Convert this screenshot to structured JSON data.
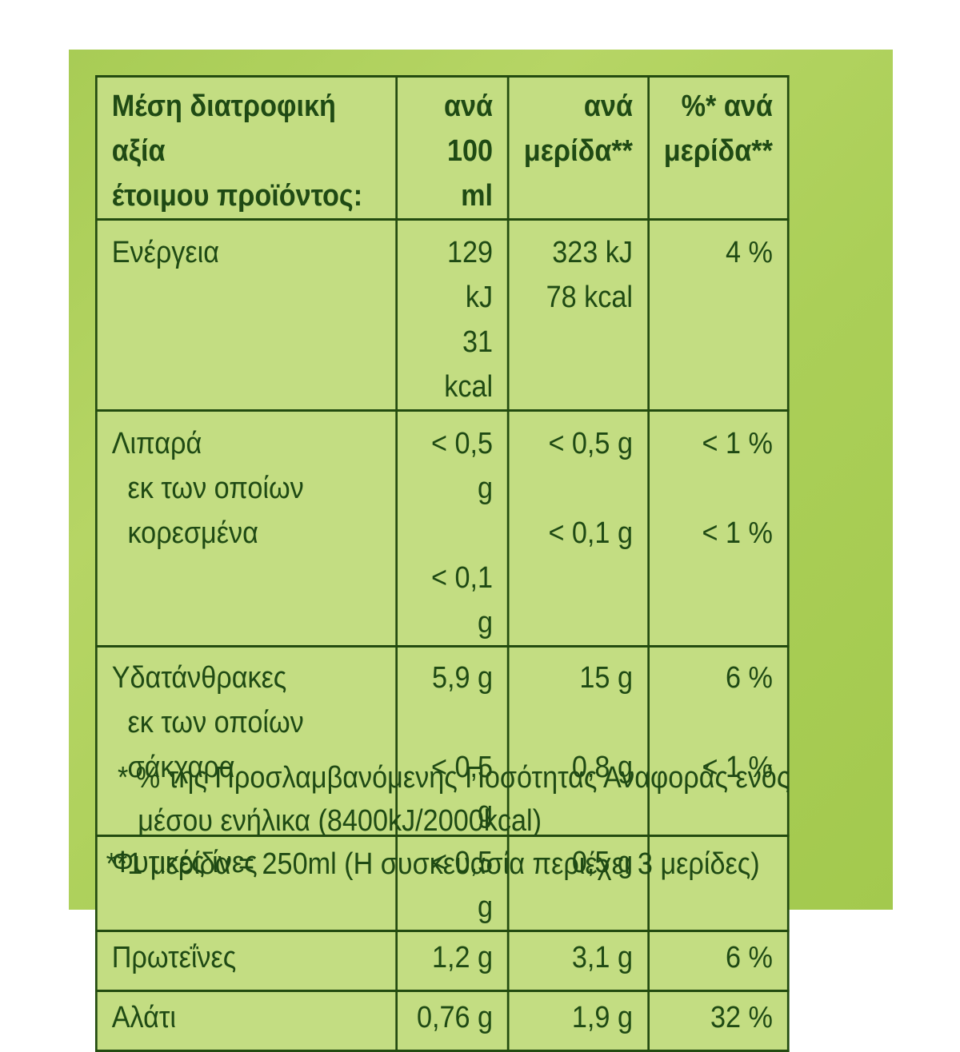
{
  "header": {
    "label_line1": "Μέση διατροφική αξία",
    "label_line2": "έτοιμου προϊόντος:",
    "col1_line1": "ανά",
    "col1_line2": "100 ml",
    "col2_line1": "ανά",
    "col2_line2": "μερίδα**",
    "col3_line1": "%* ανά",
    "col3_line2": "μερίδα**"
  },
  "rows": {
    "energy": {
      "label": "Ενέργεια",
      "per100_kj": "129 kJ",
      "per100_kcal": "31 kcal",
      "serving_kj": "323 kJ",
      "serving_kcal": "78 kcal",
      "ri": "4 %"
    },
    "fat": {
      "label": "Λιπαρά",
      "per100": "< 0,5 g",
      "serving": "< 0,5 g",
      "ri": "< 1 %"
    },
    "saturates": {
      "label_line1": "εκ των οποίων",
      "label_line2": "κορεσμένα",
      "per100": "< 0,1 g",
      "serving": "< 0,1 g",
      "ri": "< 1 %"
    },
    "carbs": {
      "label": "Υδατάνθρακες",
      "per100": "5,9 g",
      "serving": "15 g",
      "ri": "6 %"
    },
    "sugars": {
      "label_line1": "εκ των οποίων",
      "label_line2": "σάκχαρα",
      "per100": "< 0,5 g",
      "serving": "0,8 g",
      "ri": "< 1 %"
    },
    "fiber": {
      "label": "Φυτικές ίνες",
      "per100": "< 0,5 g",
      "serving": "0,5 g",
      "ri": ""
    },
    "protein": {
      "label": "Πρωτεΐνες",
      "per100": "1,2 g",
      "serving": "3,1 g",
      "ri": "6 %"
    },
    "salt": {
      "label": "Αλάτι",
      "per100": "0,76 g",
      "serving": "1,9 g",
      "ri": "32 %"
    }
  },
  "footnotes": {
    "line1": "* % της Προσλαμβανόμενης Ποσότητας Αναφοράς ενός",
    "line1b": "μέσου ενήλικα (8400kJ/2000kcal)",
    "line2": "**1 μερίδα = 250ml (Η συσκευασία περιέχει 3 μερίδες)"
  },
  "colors": {
    "panel": "#abcf58",
    "table": "#c3dd82",
    "text": "#1f4a14"
  }
}
